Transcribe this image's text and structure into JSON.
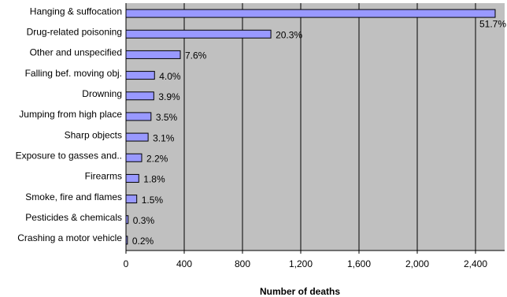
{
  "chart_data": {
    "type": "bar",
    "orientation": "horizontal",
    "x_label": "Number of deaths",
    "categories": [
      "Hanging & suffocation",
      "Drug-related poisoning",
      "Other and unspecified",
      "Falling bef. moving obj.",
      "Drowning",
      "Jumping from high place",
      "Sharp objects",
      "Exposure to gasses and..",
      "Firearms",
      "Smoke, fire and flames",
      "Pesticides &  chemicals",
      "Crashing a motor vehicle"
    ],
    "values": [
      2535,
      995,
      373,
      196,
      191,
      172,
      152,
      108,
      88,
      74,
      15,
      10
    ],
    "percent_labels": [
      "51.7%",
      "20.3%",
      "7.6%",
      "4.0%",
      "3.9%",
      "3.5%",
      "3.1%",
      "2.2%",
      "1.8%",
      "1.5%",
      "0.3%",
      "0.2%"
    ],
    "color": "#9999ff",
    "xlim": [
      0,
      2600
    ],
    "xticks": [
      0,
      400,
      800,
      {
        "value": 1200,
        "label": "1,200"
      },
      {
        "value": 1600,
        "label": "1,600"
      },
      {
        "value": 2000,
        "label": "2,000"
      },
      {
        "value": 2400,
        "label": "2,400"
      }
    ],
    "grid": true
  }
}
